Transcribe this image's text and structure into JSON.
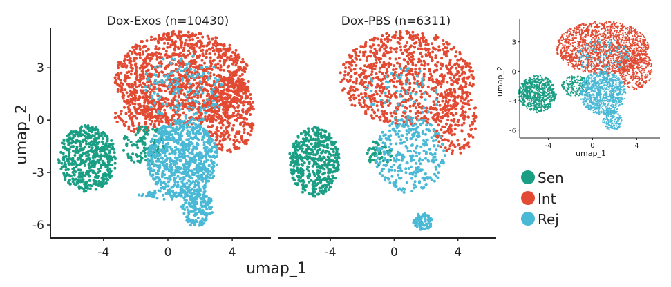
{
  "chart_data": {
    "type": "scatter",
    "xlabel": "umap_1",
    "ylabel": "umap_2",
    "xticks": [
      "-4",
      "0",
      "4"
    ],
    "yticks": [
      "3",
      "0",
      "-3",
      "-6"
    ],
    "xlim": [
      -7.3,
      6.4
    ],
    "ylim": [
      -6.75,
      5.3
    ],
    "legend": {
      "placement": "bottom-right",
      "entries": [
        {
          "key": "Sen",
          "label": "Sen",
          "color": "#1a9e84"
        },
        {
          "key": "Int",
          "label": "Int",
          "color": "#e24a33"
        },
        {
          "key": "Rej",
          "label": "Rej",
          "color": "#4ab9d6"
        }
      ]
    },
    "panels": [
      {
        "title": "Dox-Exos (n=10430)",
        "blobs": [
          {
            "group": "Int",
            "cx": 0.9,
            "cy": 2.4,
            "rx": 4.2,
            "ry": 2.7,
            "n": 1300
          },
          {
            "group": "Int",
            "cx": 3.9,
            "cy": 0.3,
            "rx": 1.5,
            "ry": 2.2,
            "n": 350
          },
          {
            "group": "Int",
            "cx": -1.8,
            "cy": 0.3,
            "rx": 1.5,
            "ry": 1.0,
            "n": 120
          },
          {
            "group": "Sen",
            "cx": -5.0,
            "cy": -2.2,
            "rx": 1.8,
            "ry": 1.9,
            "n": 520
          },
          {
            "group": "Sen",
            "cx": -1.5,
            "cy": -1.4,
            "rx": 1.3,
            "ry": 1.2,
            "n": 120
          },
          {
            "group": "Rej",
            "cx": 0.9,
            "cy": -2.2,
            "rx": 2.2,
            "ry": 2.2,
            "n": 800
          },
          {
            "group": "Rej",
            "cx": 1.8,
            "cy": -5.0,
            "rx": 1.0,
            "ry": 1.1,
            "n": 180
          },
          {
            "group": "Rej",
            "cx": 1.0,
            "cy": 1.8,
            "rx": 2.6,
            "ry": 2.0,
            "n": 160
          },
          {
            "group": "Rej",
            "cx": -0.5,
            "cy": -4.3,
            "rx": 1.5,
            "ry": 0.3,
            "n": 40
          }
        ]
      },
      {
        "title": "Dox-PBS (n=6311)",
        "blobs": [
          {
            "group": "Int",
            "cx": 0.8,
            "cy": 2.4,
            "rx": 4.2,
            "ry": 2.7,
            "n": 900
          },
          {
            "group": "Int",
            "cx": 3.8,
            "cy": 0.0,
            "rx": 1.4,
            "ry": 2.0,
            "n": 180
          },
          {
            "group": "Sen",
            "cx": -5.0,
            "cy": -2.4,
            "rx": 1.6,
            "ry": 2.0,
            "n": 500
          },
          {
            "group": "Sen",
            "cx": -0.9,
            "cy": -1.9,
            "rx": 0.8,
            "ry": 0.8,
            "n": 60
          },
          {
            "group": "Rej",
            "cx": 1.0,
            "cy": -2.0,
            "rx": 2.2,
            "ry": 2.2,
            "n": 320
          },
          {
            "group": "Rej",
            "cx": 1.8,
            "cy": -5.8,
            "rx": 0.6,
            "ry": 0.5,
            "n": 80
          },
          {
            "group": "Rej",
            "cx": 0.5,
            "cy": 1.5,
            "rx": 2.5,
            "ry": 1.5,
            "n": 60
          }
        ]
      },
      {
        "title": "",
        "inset": true,
        "xlim": [
          -6.6,
          6.1
        ],
        "ylim": [
          -6.8,
          5.3
        ],
        "blobs": [
          {
            "group": "Int",
            "cx": 0.9,
            "cy": 2.4,
            "rx": 4.2,
            "ry": 2.7,
            "n": 1400
          },
          {
            "group": "Int",
            "cx": 3.9,
            "cy": 0.2,
            "rx": 1.5,
            "ry": 2.1,
            "n": 350
          },
          {
            "group": "Sen",
            "cx": -5.0,
            "cy": -2.3,
            "rx": 1.7,
            "ry": 1.9,
            "n": 600
          },
          {
            "group": "Sen",
            "cx": -1.5,
            "cy": -1.5,
            "rx": 1.3,
            "ry": 1.1,
            "n": 150
          },
          {
            "group": "Rej",
            "cx": 0.9,
            "cy": -2.2,
            "rx": 2.1,
            "ry": 2.2,
            "n": 800
          },
          {
            "group": "Rej",
            "cx": 1.8,
            "cy": -5.0,
            "rx": 0.9,
            "ry": 1.0,
            "n": 150
          },
          {
            "group": "Rej",
            "cx": 1.0,
            "cy": 1.5,
            "rx": 2.4,
            "ry": 1.8,
            "n": 150
          }
        ]
      }
    ]
  }
}
